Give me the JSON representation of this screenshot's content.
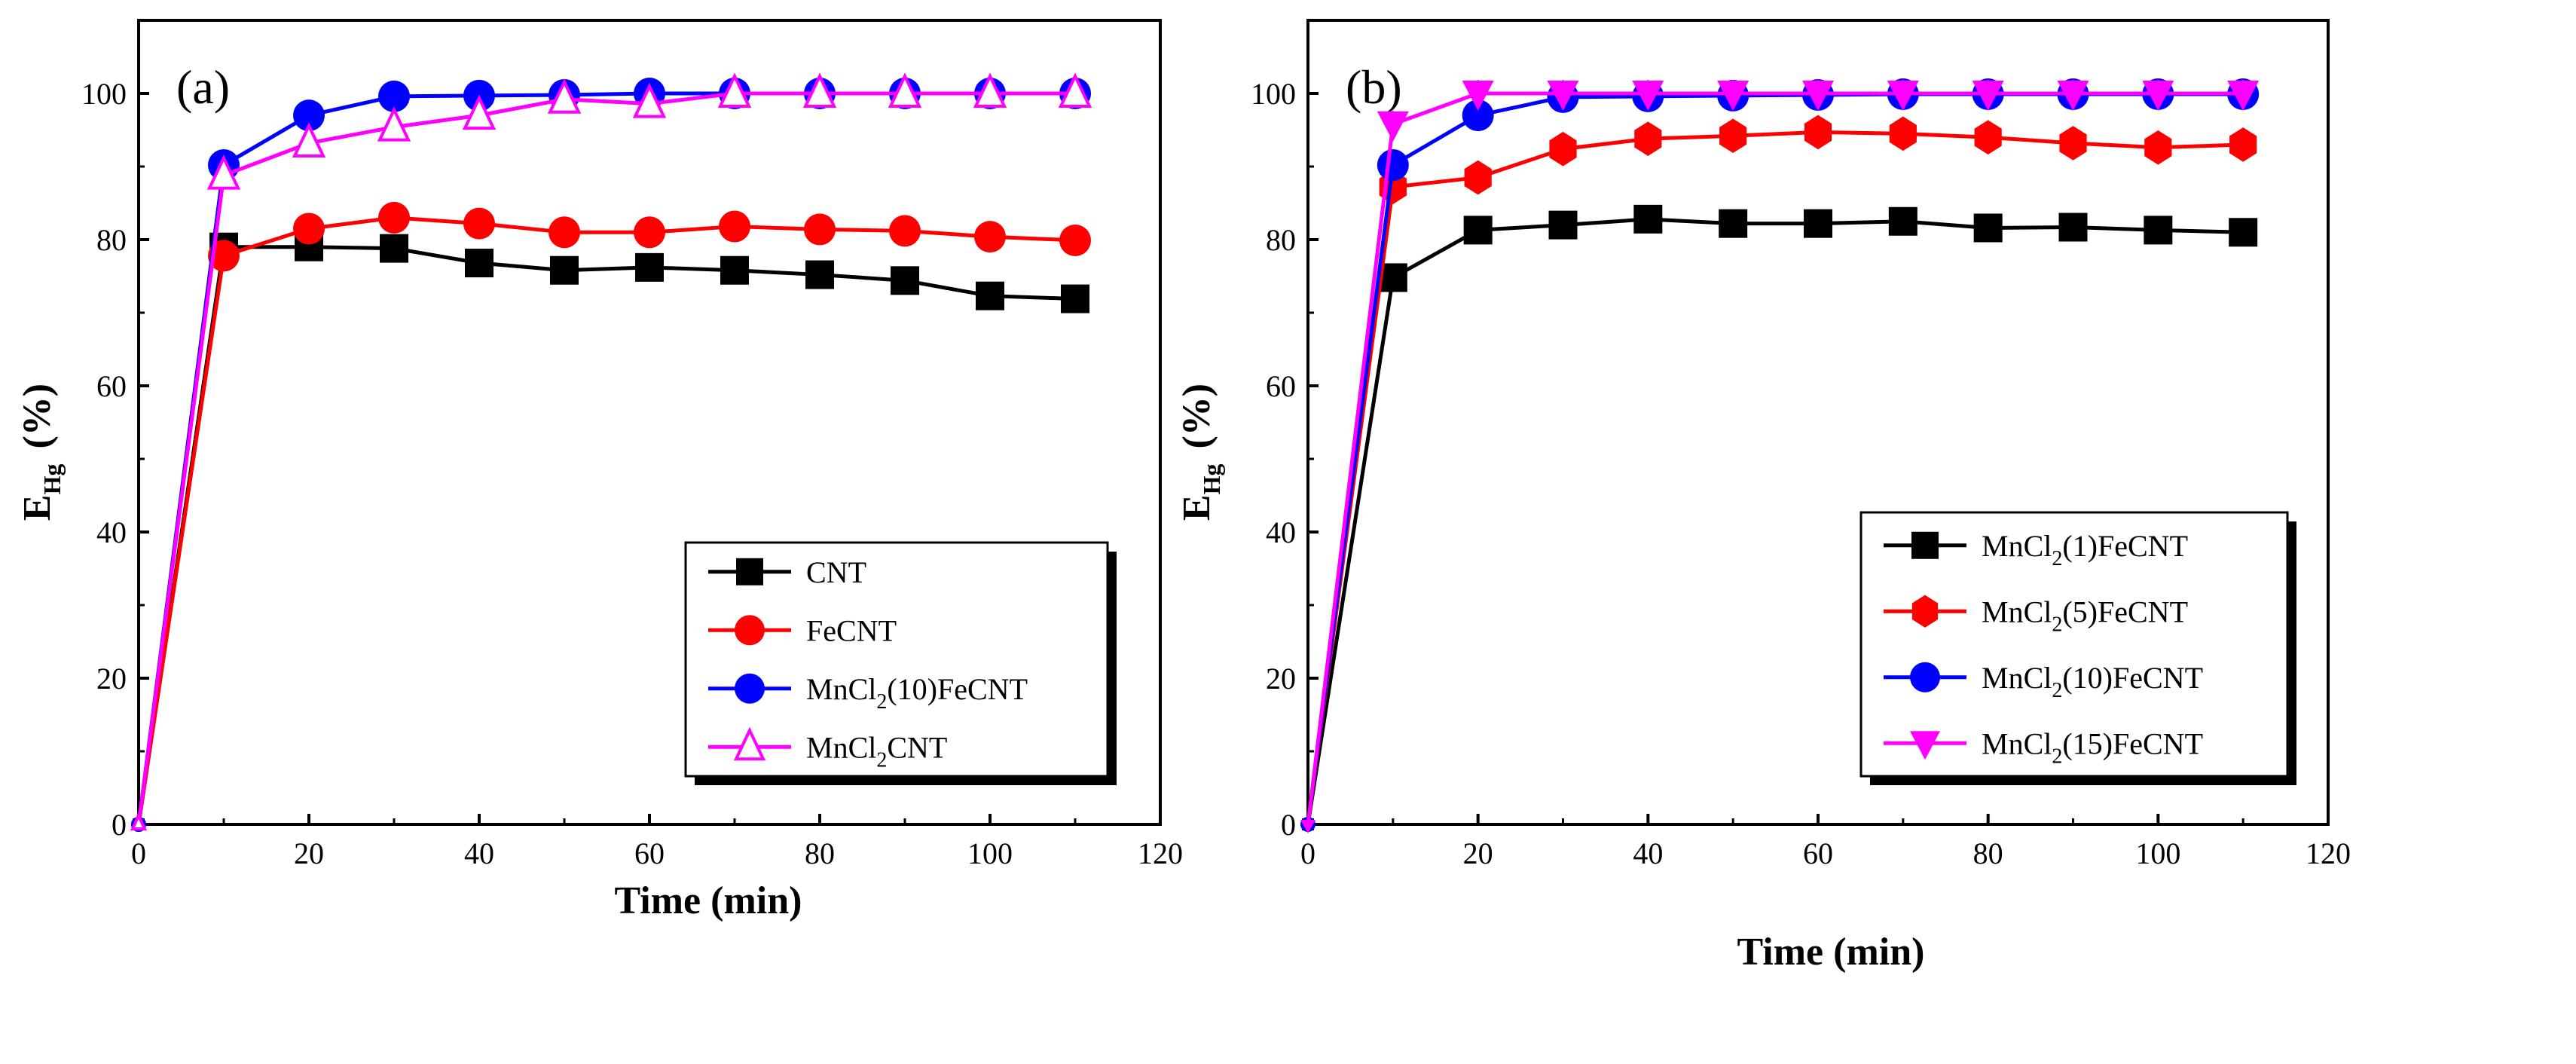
{
  "chart_data": [
    {
      "type": "line",
      "panel_label": "(a)",
      "xlabel": "Time (min)",
      "ylabel_main": "E",
      "ylabel_sub": "Hg",
      "ylabel_unit": "(%)",
      "xlim": [
        0,
        120
      ],
      "ylim": [
        0,
        110
      ],
      "xticks": [
        0,
        20,
        40,
        60,
        80,
        100,
        120
      ],
      "yticks": [
        0,
        20,
        40,
        60,
        80,
        100
      ],
      "legend_position": "bottom-right",
      "x": [
        0,
        10,
        20,
        30,
        40,
        50,
        60,
        70,
        80,
        90,
        100,
        110
      ],
      "series": [
        {
          "name": "CNT",
          "name_main": "CNT",
          "name_sub": "",
          "name_rest": "",
          "color": "#000000",
          "marker": "square",
          "values": [
            0,
            79,
            79,
            78.8,
            76.8,
            75.8,
            76.2,
            75.8,
            75.2,
            74.4,
            72.3,
            71.9
          ]
        },
        {
          "name": "FeCNT",
          "name_main": "FeCNT",
          "name_sub": "",
          "name_rest": "",
          "color": "#ff0000",
          "marker": "circle",
          "values": [
            0,
            77.8,
            81.5,
            83,
            82.2,
            81,
            81,
            81.8,
            81.4,
            81.2,
            80.4,
            79.9
          ]
        },
        {
          "name": "MnCl2(10)FeCNT",
          "name_main": "MnCl",
          "name_sub": "2",
          "name_rest": "(10)FeCNT",
          "color": "#0000ff",
          "marker": "circle",
          "values": [
            0,
            90.2,
            97,
            99.6,
            99.7,
            99.8,
            100,
            100,
            100,
            100,
            100,
            100
          ]
        },
        {
          "name": "MnCl2CNT",
          "name_main": "MnCl",
          "name_sub": "2",
          "name_rest": "CNT",
          "color": "#ff00ff",
          "marker": "triangle-open",
          "values": [
            0,
            88.8,
            93.2,
            95.4,
            97,
            99.2,
            98.6,
            100,
            100,
            100,
            100,
            100
          ]
        }
      ]
    },
    {
      "type": "line",
      "panel_label": "(b)",
      "xlabel": "Time (min)",
      "ylabel_main": "E",
      "ylabel_sub": "Hg",
      "ylabel_unit": "(%)",
      "xlim": [
        0,
        120
      ],
      "ylim": [
        0,
        110
      ],
      "xticks": [
        0,
        20,
        40,
        60,
        80,
        100,
        120
      ],
      "yticks": [
        0,
        20,
        40,
        60,
        80,
        100
      ],
      "legend_position": "bottom-right",
      "x": [
        0,
        10,
        20,
        30,
        40,
        50,
        60,
        70,
        80,
        90,
        100,
        110
      ],
      "series": [
        {
          "name": "MnCl2(1)FeCNT",
          "name_main": "MnCl",
          "name_sub": "2",
          "name_rest": "(1)FeCNT",
          "color": "#000000",
          "marker": "square",
          "values": [
            0,
            74.8,
            81.3,
            82,
            82.8,
            82.2,
            82.2,
            82.5,
            81.6,
            81.7,
            81.3,
            81
          ]
        },
        {
          "name": "MnCl2(5)FeCNT",
          "name_main": "MnCl",
          "name_sub": "2",
          "name_rest": "(5)FeCNT",
          "color": "#ff0000",
          "marker": "hexagon",
          "values": [
            0,
            87.2,
            88.5,
            92.4,
            93.8,
            94.2,
            94.7,
            94.5,
            94,
            93.2,
            92.6,
            93
          ]
        },
        {
          "name": "MnCl2(10)FeCNT",
          "name_main": "MnCl",
          "name_sub": "2",
          "name_rest": "(10)FeCNT",
          "color": "#0000ff",
          "marker": "circle",
          "values": [
            0,
            90.2,
            97,
            99.5,
            99.6,
            99.7,
            99.8,
            99.9,
            99.9,
            99.9,
            99.9,
            99.9
          ]
        },
        {
          "name": "MnCl2(15)FeCNT",
          "name_main": "MnCl",
          "name_sub": "2",
          "name_rest": "(15)FeCNT",
          "color": "#ff00ff",
          "marker": "triangle-down",
          "values": [
            0,
            95.8,
            100,
            100,
            100,
            100,
            100,
            100,
            100,
            100,
            100,
            100
          ]
        }
      ]
    }
  ]
}
